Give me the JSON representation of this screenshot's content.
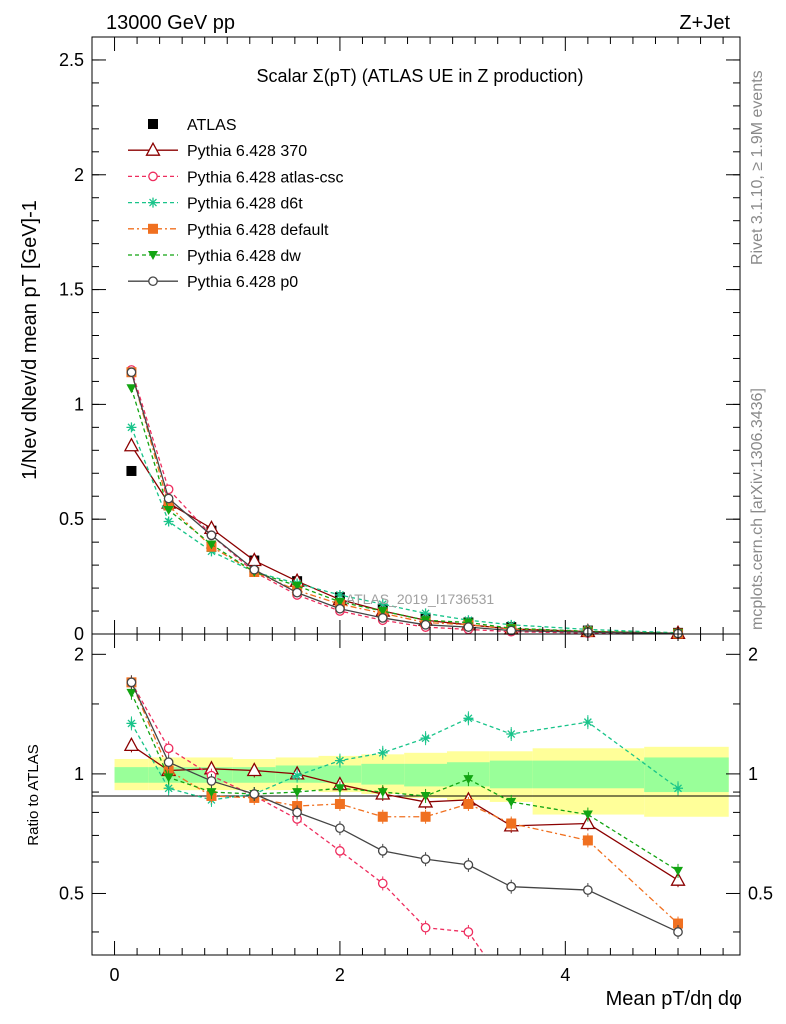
{
  "header": {
    "left": "13000 GeV pp",
    "right": "Z+Jet"
  },
  "side_text": {
    "rivet": "Rivet 3.1.10, ≥ 1.9M events",
    "site": "mcplots.cern.ch [arXiv:1306.3436]"
  },
  "colors": {
    "ATLAS": "#000000",
    "p370": "#8b0000",
    "atlas_csc": "#ee2d5e",
    "d6t": "#19c48a",
    "default": "#f07020",
    "dw": "#12a412",
    "p0": "#444444",
    "band_outer": "#ffff99",
    "band_inner": "#99ff99"
  },
  "chart_data": [
    {
      "type": "line",
      "title": "Scalar Σ(pT) (ATLAS UE in Z production)",
      "watermark": "ATLAS_2019_I1736531",
      "xlabel": "Mean pT/dη dφ",
      "ylabel": "1/Nev dNev/d mean pT [GeV]-1",
      "xlim": [
        -0.2,
        5.55
      ],
      "ylim": [
        0,
        2.6
      ],
      "x_ticks": [
        "0",
        "2",
        "4"
      ],
      "y_ticks": [
        "0",
        "0.5",
        "1",
        "1.5",
        "2",
        "2.5"
      ],
      "legend_position": "top-left",
      "x": [
        0.15,
        0.48,
        0.86,
        1.24,
        1.62,
        2.0,
        2.38,
        2.76,
        3.14,
        3.52,
        4.2,
        5.0
      ],
      "series": [
        {
          "name": "ATLAS",
          "key": "ATLAS",
          "marker": "square",
          "values": [
            0.71,
            0.56,
            0.45,
            0.32,
            0.23,
            0.16,
            0.11,
            0.07,
            0.05,
            0.03,
            0.015,
            0.005
          ]
        },
        {
          "name": "Pythia 6.428 370",
          "key": "p370",
          "marker": "triangle-open",
          "values": [
            0.82,
            0.57,
            0.46,
            0.32,
            0.23,
            0.15,
            0.1,
            0.06,
            0.04,
            0.022,
            0.011,
            0.003
          ]
        },
        {
          "name": "Pythia 6.428 atlas-csc",
          "key": "atlas_csc",
          "marker": "circle-open",
          "values": [
            1.15,
            0.63,
            0.43,
            0.27,
            0.17,
            0.1,
            0.06,
            0.03,
            0.02,
            0.01,
            0.004,
            0.001
          ]
        },
        {
          "name": "Pythia 6.428 d6t",
          "key": "d6t",
          "marker": "star",
          "values": [
            0.9,
            0.49,
            0.36,
            0.27,
            0.22,
            0.17,
            0.13,
            0.09,
            0.06,
            0.04,
            0.02,
            0.005
          ]
        },
        {
          "name": "Pythia 6.428 default",
          "key": "default",
          "marker": "square",
          "values": [
            1.14,
            0.56,
            0.38,
            0.27,
            0.19,
            0.13,
            0.09,
            0.05,
            0.04,
            0.022,
            0.01,
            0.002
          ]
        },
        {
          "name": "Pythia 6.428 dw",
          "key": "dw",
          "marker": "triangle-down",
          "values": [
            1.07,
            0.54,
            0.39,
            0.27,
            0.21,
            0.14,
            0.1,
            0.06,
            0.05,
            0.025,
            0.012,
            0.003
          ]
        },
        {
          "name": "Pythia 6.428 p0",
          "key": "p0",
          "marker": "circle-open",
          "values": [
            1.14,
            0.59,
            0.43,
            0.28,
            0.18,
            0.11,
            0.07,
            0.04,
            0.03,
            0.015,
            0.008,
            0.002
          ]
        }
      ]
    },
    {
      "type": "line",
      "ylabel": "Ratio to ATLAS",
      "xlabel": "Mean pT/dη dφ",
      "xlim": [
        -0.2,
        5.55
      ],
      "ylim": [
        0.35,
        2.25
      ],
      "x_ticks": [
        "0",
        "2",
        "4"
      ],
      "y_ticks": [
        "0.5",
        "1",
        "2"
      ],
      "reference_line": 1,
      "band_edges": [
        0.0,
        0.3,
        0.67,
        1.05,
        1.43,
        1.81,
        2.19,
        2.57,
        2.95,
        3.33,
        3.71,
        4.7,
        5.45
      ],
      "band_outer": [
        [
          0.91,
          1.09
        ],
        [
          0.91,
          1.1
        ],
        [
          0.91,
          1.1
        ],
        [
          0.91,
          1.09
        ],
        [
          0.91,
          1.1
        ],
        [
          0.9,
          1.11
        ],
        [
          0.89,
          1.12
        ],
        [
          0.87,
          1.13
        ],
        [
          0.86,
          1.14
        ],
        [
          0.85,
          1.14
        ],
        [
          0.79,
          1.16
        ],
        [
          0.78,
          1.17
        ]
      ],
      "band_inner": [
        [
          0.95,
          1.04
        ],
        [
          0.95,
          1.04
        ],
        [
          0.95,
          1.04
        ],
        [
          0.95,
          1.04
        ],
        [
          0.95,
          1.05
        ],
        [
          0.95,
          1.05
        ],
        [
          0.94,
          1.06
        ],
        [
          0.93,
          1.06
        ],
        [
          0.93,
          1.07
        ],
        [
          0.92,
          1.08
        ],
        [
          0.92,
          1.08
        ],
        [
          0.9,
          1.1
        ]
      ],
      "x": [
        0.15,
        0.48,
        0.86,
        1.24,
        1.62,
        2.0,
        2.38,
        2.76,
        3.14,
        3.52,
        4.2,
        5.0
      ],
      "series": [
        {
          "name": "Pythia 6.428 370",
          "key": "p370",
          "marker": "triangle-open",
          "values": [
            1.18,
            1.02,
            1.03,
            1.02,
            1.0,
            0.94,
            0.89,
            0.85,
            0.86,
            0.74,
            0.75,
            0.54
          ]
        },
        {
          "name": "Pythia 6.428 atlas-csc",
          "key": "atlas_csc",
          "marker": "circle-open",
          "values": [
            1.7,
            1.16,
            0.99,
            0.88,
            0.77,
            0.64,
            0.53,
            0.41,
            0.4,
            0.28,
            null,
            null
          ]
        },
        {
          "name": "Pythia 6.428 d6t",
          "key": "d6t",
          "marker": "star",
          "values": [
            1.34,
            0.92,
            0.86,
            0.89,
            0.99,
            1.08,
            1.13,
            1.23,
            1.38,
            1.26,
            1.35,
            0.92
          ]
        },
        {
          "name": "Pythia 6.428 default",
          "key": "default",
          "marker": "square",
          "values": [
            1.7,
            1.02,
            0.88,
            0.87,
            0.83,
            0.84,
            0.78,
            0.78,
            0.84,
            0.75,
            0.68,
            0.42
          ]
        },
        {
          "name": "Pythia 6.428 dw",
          "key": "dw",
          "marker": "triangle-down",
          "values": [
            1.6,
            0.98,
            0.9,
            0.89,
            0.9,
            0.92,
            0.9,
            0.88,
            0.97,
            0.85,
            0.79,
            0.57
          ]
        },
        {
          "name": "Pythia 6.428 p0",
          "key": "p0",
          "marker": "circle-open",
          "values": [
            1.7,
            1.07,
            0.96,
            0.89,
            0.8,
            0.73,
            0.64,
            0.61,
            0.59,
            0.52,
            0.51,
            0.4
          ]
        }
      ]
    }
  ]
}
